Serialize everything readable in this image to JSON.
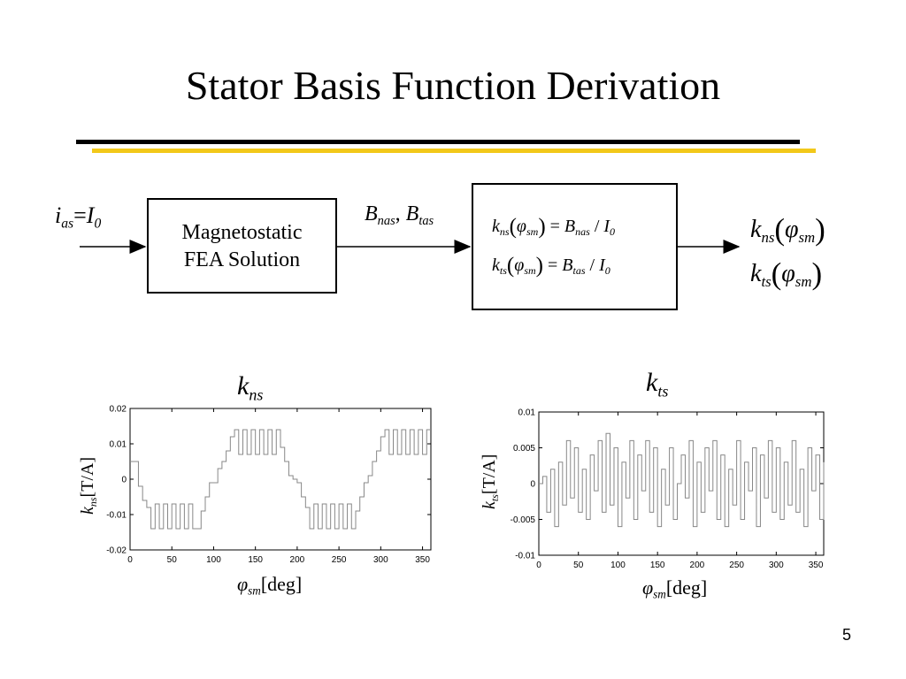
{
  "slide": {
    "title": "Stator Basis Function Derivation",
    "page_number": "5",
    "accent_color": "#f2c81a"
  },
  "diagram": {
    "input": {
      "i": "i",
      "i_sub": "as",
      "eq": "=",
      "I": "I",
      "I_sub": "0"
    },
    "fea_block": {
      "line1": "Magnetostatic",
      "line2": "FEA Solution"
    },
    "intermediate": {
      "b1": "B",
      "b1_sub": "nas",
      "sep": ", ",
      "b2": "B",
      "b2_sub": "tas"
    },
    "equations": [
      {
        "k": "k",
        "k_sub": "ns",
        "phi": "φ",
        "phi_sub": "sm",
        "eq": " = ",
        "b": "B",
        "b_sub": "nas",
        "div": " / ",
        "i": "I",
        "i_sub": "0"
      },
      {
        "k": "k",
        "k_sub": "ts",
        "phi": "φ",
        "phi_sub": "sm",
        "eq": " = ",
        "b": "B",
        "b_sub": "tas",
        "div": " / ",
        "i": "I",
        "i_sub": "0"
      }
    ],
    "outputs": [
      {
        "k": "k",
        "k_sub": "ns",
        "phi": "φ",
        "phi_sub": "sm"
      },
      {
        "k": "k",
        "k_sub": "ts",
        "phi": "φ",
        "phi_sub": "sm"
      }
    ]
  },
  "chart_data": [
    {
      "type": "line",
      "title": "k_ns",
      "title_parts": {
        "k": "k",
        "sub": "ns"
      },
      "xlabel_parts": {
        "phi": "φ",
        "sub": "sm",
        "unit": "[deg]"
      },
      "ylabel_parts": {
        "k": "k",
        "sub": "ns",
        "unit": "[T/A]"
      },
      "xlim": [
        0,
        360
      ],
      "ylim": [
        -0.02,
        0.02
      ],
      "xticks": [
        0,
        50,
        100,
        150,
        200,
        250,
        300,
        350
      ],
      "yticks": [
        0.02,
        0.01,
        0,
        -0.01,
        -0.02
      ],
      "ytick_labels": [
        "0.02",
        "0.01",
        "0",
        "-0.01",
        "-0.02"
      ],
      "grid": false,
      "line_color": "#888888",
      "series": [
        {
          "x": [
            0,
            5,
            10,
            15,
            20,
            25,
            30,
            35,
            40,
            45,
            50,
            55,
            60,
            65,
            70,
            75,
            80,
            85,
            90,
            95,
            100,
            105,
            110,
            115,
            120,
            125,
            130,
            135,
            140,
            145,
            150,
            155,
            160,
            165,
            170,
            175,
            180,
            185,
            190,
            195,
            200,
            205,
            210,
            215,
            220,
            225,
            230,
            235,
            240,
            245,
            250,
            255,
            260,
            265,
            270,
            275,
            280,
            285,
            290,
            295,
            300,
            305,
            310,
            315,
            320,
            325,
            330,
            335,
            340,
            345,
            350,
            355,
            360
          ],
          "y": [
            0.005,
            0.005,
            -0.002,
            -0.006,
            -0.008,
            -0.014,
            -0.007,
            -0.014,
            -0.007,
            -0.014,
            -0.007,
            -0.014,
            -0.007,
            -0.014,
            -0.007,
            -0.014,
            -0.014,
            -0.009,
            -0.005,
            -0.001,
            -0.001,
            0.003,
            0.005,
            0.008,
            0.012,
            0.014,
            0.007,
            0.014,
            0.007,
            0.014,
            0.007,
            0.014,
            0.007,
            0.014,
            0.007,
            0.014,
            0.009,
            0.005,
            0.001,
            0.0,
            -0.001,
            -0.005,
            -0.008,
            -0.014,
            -0.007,
            -0.014,
            -0.007,
            -0.014,
            -0.007,
            -0.014,
            -0.007,
            -0.014,
            -0.007,
            -0.014,
            -0.009,
            -0.005,
            -0.001,
            0.001,
            0.005,
            0.008,
            0.012,
            0.014,
            0.007,
            0.014,
            0.007,
            0.014,
            0.007,
            0.014,
            0.007,
            0.014,
            0.007,
            0.014,
            0.014
          ]
        }
      ]
    },
    {
      "type": "line",
      "title": "k_ts",
      "title_parts": {
        "k": "k",
        "sub": "ts"
      },
      "xlabel_parts": {
        "phi": "φ",
        "sub": "sm",
        "unit": "[deg]"
      },
      "ylabel_parts": {
        "k": "k",
        "sub": "ts",
        "unit": "[T/A]"
      },
      "xlim": [
        0,
        360
      ],
      "ylim": [
        -0.01,
        0.01
      ],
      "xticks": [
        0,
        50,
        100,
        150,
        200,
        250,
        300,
        350
      ],
      "yticks": [
        0.01,
        0.005,
        0,
        -0.005,
        -0.01
      ],
      "ytick_labels": [
        "0.01",
        "0.005",
        "0",
        "-0.005",
        "-0.01"
      ],
      "grid": false,
      "line_color": "#888888",
      "series": [
        {
          "x": [
            0,
            5,
            10,
            15,
            20,
            25,
            30,
            35,
            40,
            45,
            50,
            55,
            60,
            65,
            70,
            75,
            80,
            85,
            90,
            95,
            100,
            105,
            110,
            115,
            120,
            125,
            130,
            135,
            140,
            145,
            150,
            155,
            160,
            165,
            170,
            175,
            180,
            185,
            190,
            195,
            200,
            205,
            210,
            215,
            220,
            225,
            230,
            235,
            240,
            245,
            250,
            255,
            260,
            265,
            270,
            275,
            280,
            285,
            290,
            295,
            300,
            305,
            310,
            315,
            320,
            325,
            330,
            335,
            340,
            345,
            350,
            355,
            360
          ],
          "y": [
            0.0,
            0.001,
            -0.004,
            0.002,
            -0.006,
            0.003,
            -0.003,
            0.006,
            -0.002,
            0.005,
            -0.004,
            0.002,
            -0.005,
            0.004,
            -0.001,
            0.006,
            -0.004,
            0.007,
            -0.003,
            0.005,
            -0.006,
            0.003,
            -0.002,
            0.006,
            -0.005,
            0.004,
            -0.001,
            0.006,
            -0.004,
            0.005,
            -0.006,
            0.002,
            -0.003,
            0.005,
            -0.005,
            0.0,
            0.004,
            -0.002,
            0.006,
            -0.006,
            0.003,
            -0.004,
            0.005,
            -0.001,
            0.006,
            -0.005,
            0.004,
            -0.006,
            0.002,
            -0.003,
            0.006,
            -0.005,
            0.003,
            -0.001,
            0.005,
            -0.006,
            0.004,
            -0.002,
            0.006,
            -0.004,
            0.005,
            -0.005,
            0.003,
            -0.003,
            0.006,
            -0.004,
            0.002,
            -0.006,
            0.005,
            -0.001,
            0.004,
            -0.005,
            0.003
          ]
        }
      ]
    }
  ]
}
